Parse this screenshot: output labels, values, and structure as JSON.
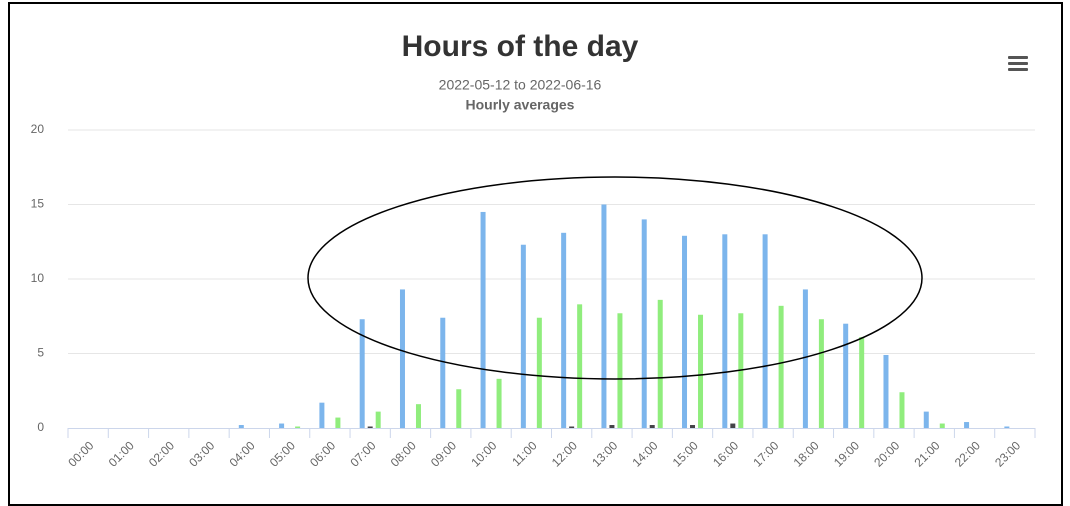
{
  "chart_data": {
    "type": "bar",
    "title": "Hours of the day",
    "subtitle": "2022-05-12 to 2022-06-16",
    "subtitle2": "Hourly averages",
    "categories": [
      "00:00",
      "01:00",
      "02:00",
      "03:00",
      "04:00",
      "05:00",
      "06:00",
      "07:00",
      "08:00",
      "09:00",
      "10:00",
      "11:00",
      "12:00",
      "13:00",
      "14:00",
      "15:00",
      "16:00",
      "17:00",
      "18:00",
      "19:00",
      "20:00",
      "21:00",
      "22:00",
      "23:00"
    ],
    "series": [
      {
        "color": "#7cb5ec",
        "values": [
          0,
          0,
          0,
          0,
          0.2,
          0.3,
          1.7,
          7.3,
          9.3,
          7.4,
          14.5,
          12.3,
          13.1,
          15,
          14,
          12.9,
          13,
          13,
          9.3,
          7.0,
          4.9,
          1.1,
          0.4,
          0.1
        ]
      },
      {
        "color": "#434348",
        "values": [
          0,
          0,
          0,
          0,
          0,
          0,
          0,
          0.1,
          0,
          0,
          0,
          0,
          0.1,
          0.2,
          0.2,
          0.2,
          0.3,
          0,
          0,
          0,
          0,
          0,
          0,
          0
        ]
      },
      {
        "color": "#90ed7d",
        "values": [
          0,
          0,
          0,
          0,
          0,
          0.1,
          0.7,
          1.1,
          1.6,
          2.6,
          3.3,
          7.4,
          8.3,
          7.7,
          8.6,
          7.6,
          7.7,
          8.2,
          7.3,
          6.1,
          2.4,
          0.3,
          0,
          0
        ]
      }
    ],
    "ylim": [
      0,
      20
    ],
    "yticks": [
      0,
      5,
      10,
      15,
      20
    ],
    "grid": true
  }
}
